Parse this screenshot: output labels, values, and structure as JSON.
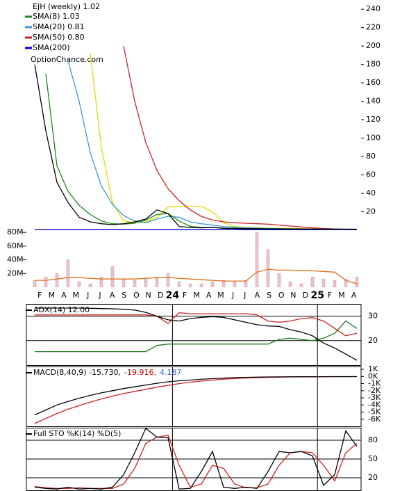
{
  "chart_data": {
    "type": "line",
    "title": "EJH (weekly) 1.02",
    "watermark": "OptionChance.com",
    "x": [
      0,
      4,
      8,
      12,
      16,
      20,
      24,
      28,
      32,
      36,
      40,
      44,
      48,
      52,
      56,
      60,
      64,
      68,
      72,
      76,
      80,
      84,
      88,
      92,
      96,
      100,
      104,
      108,
      112,
      116
    ],
    "xlim": [
      -3,
      117
    ],
    "xticks": [
      {
        "value": 1.8,
        "label": "F"
      },
      {
        "value": 6.1,
        "label": "M"
      },
      {
        "value": 10.5,
        "label": "A"
      },
      {
        "value": 14.8,
        "label": "M"
      },
      {
        "value": 19.2,
        "label": "J"
      },
      {
        "value": 23.5,
        "label": "J"
      },
      {
        "value": 27.9,
        "label": "A"
      },
      {
        "value": 32.2,
        "label": "S"
      },
      {
        "value": 36.6,
        "label": "O"
      },
      {
        "value": 40.9,
        "label": "N"
      },
      {
        "value": 45.3,
        "label": "D"
      },
      {
        "value": 49.6,
        "label": "24"
      },
      {
        "value": 54.0,
        "label": "F"
      },
      {
        "value": 58.3,
        "label": "M"
      },
      {
        "value": 62.7,
        "label": "A"
      },
      {
        "value": 67.0,
        "label": "M"
      },
      {
        "value": 71.4,
        "label": "J"
      },
      {
        "value": 75.7,
        "label": "J"
      },
      {
        "value": 80.1,
        "label": "A"
      },
      {
        "value": 84.4,
        "label": "S"
      },
      {
        "value": 88.8,
        "label": "O"
      },
      {
        "value": 93.1,
        "label": "N"
      },
      {
        "value": 97.5,
        "label": "D"
      },
      {
        "value": 101.8,
        "label": "25"
      },
      {
        "value": 106.2,
        "label": "F"
      },
      {
        "value": 110.5,
        "label": "M"
      },
      {
        "value": 114.9,
        "label": "A"
      }
    ],
    "panels": [
      {
        "legend": [
          {
            "text": "SMA(8) 1.03",
            "color": "#1a8a1a"
          },
          {
            "text": "SMA(20) 0.81",
            "color": "#3399dd"
          },
          {
            "text": "SMA(50) 0.80",
            "color": "#cc2222"
          },
          {
            "text": "SMA(200)",
            "color": "#0000cc"
          }
        ],
        "ylim": [
          -62,
          250
        ],
        "yticks": [
          20,
          40,
          60,
          80,
          100,
          120,
          140,
          160,
          180,
          200,
          220,
          240
        ],
        "y2lim": [
          0,
          419000000
        ],
        "y2ticks": [
          {
            "value": 20000000,
            "label": "20M"
          },
          {
            "value": 40000000,
            "label": "40M"
          },
          {
            "value": 60000000,
            "label": "60M"
          },
          {
            "value": 80000000,
            "label": "80M"
          }
        ],
        "grid": false,
        "series": [
          {
            "type": "bar",
            "axis": "y2",
            "color": "#f2c0c8",
            "values": [
              10000000,
              15000000,
              20000000,
              40000000,
              8000000,
              5000000,
              15000000,
              30000000,
              12000000,
              10000000,
              12000000,
              15000000,
              20000000,
              8000000,
              5000000,
              5000000,
              8000000,
              10000000,
              8000000,
              10000000,
              80000000,
              55000000,
              20000000,
              8000000,
              5000000,
              15000000,
              12000000,
              10000000,
              12000000,
              15000000
            ]
          },
          {
            "axis": "y2",
            "color": "#e07020",
            "values": [
              10000000,
              10000000,
              12000000,
              14000000,
              14000000,
              13000000,
              12000000,
              12000000,
              12000000,
              12000000,
              13000000,
              14000000,
              14000000,
              13000000,
              12000000,
              11000000,
              10000000,
              9000000,
              9000000,
              9000000,
              22000000,
              26000000,
              25000000,
              25000000,
              24000000,
              24000000,
              23000000,
              22000000,
              10000000,
              5000000
            ]
          },
          {
            "color": "#0000cc",
            "values": [
              0.5,
              0.5,
              0.5,
              0.5,
              0.5,
              0.5,
              0.5,
              0.5,
              0.5,
              0.5,
              0.5,
              0.5,
              0.5,
              0.5,
              0.5,
              0.5,
              0.5,
              0.5,
              0.5,
              0.5,
              0.5,
              0.5,
              0.5,
              0.5,
              0.5,
              0.5,
              0.5,
              0.5,
              0.5,
              0.5
            ]
          },
          {
            "color": "#e8d800",
            "values": [
              null,
              null,
              null,
              null,
              null,
              192,
              90,
              30,
              10,
              8,
              9,
              14,
              25,
              26,
              26,
              26,
              20,
              8,
              4,
              3,
              2.5,
              2.2,
              2,
              1.8,
              1.6,
              1.4,
              1.2,
              1.0,
              0.9,
              0.8
            ]
          },
          {
            "color": "#cc2222",
            "values": [
              null,
              null,
              null,
              null,
              null,
              null,
              null,
              null,
              200,
              140,
              95,
              65,
              45,
              32,
              22,
              15,
              11,
              9,
              8,
              7.5,
              7,
              6.5,
              5.5,
              4.5,
              3.5,
              2.5,
              1.8,
              1.3,
              1.0,
              0.8
            ]
          },
          {
            "color": "#3399dd",
            "values": [
              null,
              null,
              null,
              184,
              140,
              84,
              48,
              28,
              16,
              10,
              8,
              12,
              15,
              14,
              9,
              7,
              5.5,
              4,
              3.2,
              2.6,
              2.2,
              1.9,
              1.6,
              1.4,
              1.2,
              1.1,
              1.0,
              0.95,
              0.88,
              0.81
            ]
          },
          {
            "color": "#1a8a1a",
            "values": [
              null,
              170,
              70,
              42,
              27,
              17,
              10,
              7,
              6.5,
              7.5,
              11,
              17,
              18,
              10,
              4,
              3,
              3,
              2.3,
              2,
              1.7,
              1.6,
              1.5,
              1.4,
              1.3,
              1.25,
              1.2,
              1.15,
              1.1,
              1.05,
              1.03
            ]
          },
          {
            "color": "#000000",
            "values": [
              180,
              108,
              52,
              30,
              14,
              9,
              7,
              6,
              7,
              9,
              12,
              22,
              18,
              4,
              3,
              2.5,
              3,
              2,
              1.8,
              1.6,
              1.5,
              1.4,
              1.3,
              1.3,
              1.2,
              1.2,
              1.1,
              1.1,
              1.05,
              1.02
            ]
          }
        ]
      },
      {
        "legend": [
          {
            "text": "ADX(14) 12.00",
            "color": "#000000"
          }
        ],
        "ylim": [
          10,
          35
        ],
        "yticks": [
          20,
          30
        ],
        "grid": true,
        "series": [
          {
            "color": "#1a7a1a",
            "values": [
              15.5,
              15.5,
              15.5,
              15.5,
              15.5,
              15.5,
              15.5,
              15.5,
              15.5,
              15.5,
              15.5,
              18,
              18.6,
              18.6,
              18.6,
              18.6,
              18.6,
              18.6,
              18.6,
              18.6,
              18.6,
              18.6,
              20.5,
              21,
              20.5,
              20,
              21,
              23,
              28,
              25
            ]
          },
          {
            "color": "#cc2222",
            "values": [
              30.5,
              30.5,
              30.5,
              30.5,
              30.5,
              30.5,
              30.5,
              30.5,
              30.5,
              30.5,
              30.5,
              30,
              27,
              31.4,
              31,
              31,
              31,
              31,
              31,
              31,
              30.5,
              28,
              27.5,
              28,
              29,
              29.4,
              28,
              25,
              22,
              23
            ]
          },
          {
            "color": "#000000",
            "values": [
              33.3,
              33.3,
              33.3,
              33.3,
              33.3,
              33.2,
              33.1,
              33,
              32.8,
              32.5,
              31.5,
              30,
              28.5,
              28,
              29,
              29.5,
              29.8,
              29.5,
              28.5,
              27.5,
              26.5,
              26,
              25.8,
              24.5,
              23.5,
              22,
              19,
              17,
              14.5,
              12.0
            ]
          }
        ]
      },
      {
        "legend": [
          {
            "text": "MACD(8,40,9) -15.730,",
            "color": "#000000"
          },
          {
            "text": "-19.916,",
            "color": "#cc0000"
          },
          {
            "text": "4.187",
            "color": "#3366cc"
          }
        ],
        "ylim": [
          -7000,
          1400
        ],
        "yticks": [
          {
            "value": 1000,
            "label": "1K"
          },
          {
            "value": 0,
            "label": "0K"
          },
          {
            "value": -1000,
            "label": "-1K"
          },
          {
            "value": -2000,
            "label": "-2K"
          },
          {
            "value": -3000,
            "label": "-3K"
          },
          {
            "value": -4000,
            "label": "-4K"
          },
          {
            "value": -5000,
            "label": "-5K"
          },
          {
            "value": -6000,
            "label": "-6K"
          }
        ],
        "grid": false,
        "series": [
          {
            "color": "#cc2222",
            "values": [
              -6600,
              -5900,
              -5200,
              -4600,
              -4100,
              -3600,
              -3150,
              -2750,
              -2400,
              -2100,
              -1800,
              -1500,
              -1250,
              -1000,
              -800,
              -650,
              -500,
              -380,
              -280,
              -210,
              -160,
              -120,
              -90,
              -70,
              -55,
              -45,
              -35,
              -28,
              -22,
              -19.916
            ]
          },
          {
            "color": "#000000",
            "values": [
              -5400,
              -4700,
              -4000,
              -3500,
              -3050,
              -2650,
              -2300,
              -2000,
              -1700,
              -1450,
              -1200,
              -950,
              -750,
              -600,
              -500,
              -400,
              -300,
              -220,
              -160,
              -120,
              -90,
              -70,
              -55,
              -45,
              -35,
              -30,
              -25,
              -20,
              -18,
              -15.73
            ]
          }
        ]
      },
      {
        "legend": [
          {
            "text": "Full STO %K(14) %D(5)",
            "color": "#000000"
          }
        ],
        "ylim": [
          0,
          100
        ],
        "yticks": [
          20,
          50,
          80
        ],
        "grid": true,
        "series": [
          {
            "color": "#cc2222",
            "values": [
              6,
              4,
              3,
              3,
              4,
              3,
              3,
              3,
              10,
              35,
              75,
              85,
              88,
              40,
              5,
              10,
              40,
              35,
              10,
              4,
              4,
              10,
              40,
              60,
              62,
              60,
              40,
              15,
              60,
              75
            ]
          },
          {
            "color": "#000000",
            "values": [
              5,
              3,
              2,
              5,
              2,
              3,
              2,
              5,
              25,
              60,
              99,
              85,
              84,
              2,
              3,
              30,
              62,
              5,
              3,
              5,
              3,
              30,
              62,
              60,
              62,
              55,
              8,
              25,
              95,
              70
            ]
          }
        ]
      }
    ]
  }
}
